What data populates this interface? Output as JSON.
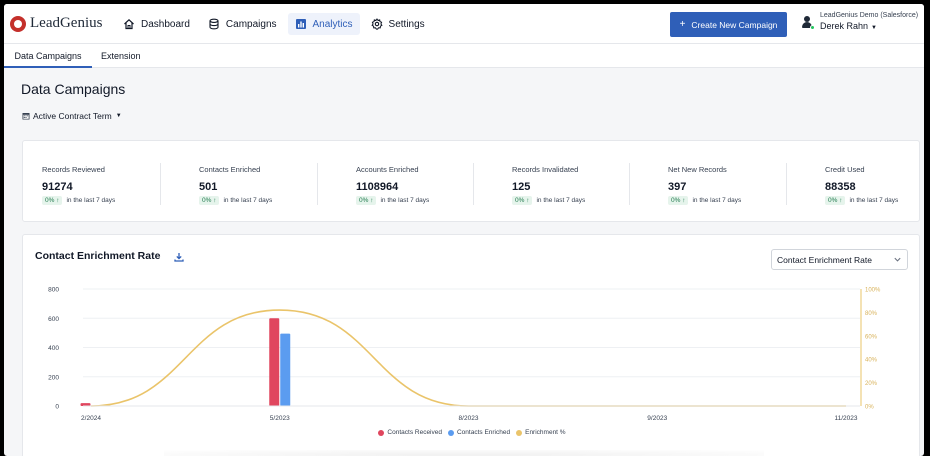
{
  "app": {
    "logo_text": "LeadGenius"
  },
  "nav": {
    "items": [
      {
        "label": "Dashboard",
        "icon": "home-icon",
        "active": false
      },
      {
        "label": "Campaigns",
        "icon": "database-icon",
        "active": false
      },
      {
        "label": "Analytics",
        "icon": "bar-chart-icon",
        "active": true
      },
      {
        "label": "Settings",
        "icon": "gear-icon",
        "active": false
      }
    ]
  },
  "header": {
    "create_button": "Create New Campaign",
    "user_org": "LeadGenius Demo (Salesforce)",
    "user_name": "Derek Rahn"
  },
  "subtabs": [
    {
      "label": "Data Campaigns",
      "active": true
    },
    {
      "label": "Extension",
      "active": false
    }
  ],
  "page": {
    "title": "Data Campaigns",
    "term_selector": "Active Contract Term"
  },
  "stats": [
    {
      "label": "Records Reviewed",
      "value": "91274",
      "change": "0%",
      "change_text": "in the last 7 days"
    },
    {
      "label": "Contacts Enriched",
      "value": "501",
      "change": "0%",
      "change_text": "in the last 7 days"
    },
    {
      "label": "Accounts Enriched",
      "value": "1108964",
      "change": "0%",
      "change_text": "in the last 7 days"
    },
    {
      "label": "Records Invalidated",
      "value": "125",
      "change": "0%",
      "change_text": "in the last 7 days"
    },
    {
      "label": "Net New Records",
      "value": "397",
      "change": "0%",
      "change_text": "in the last 7 days"
    },
    {
      "label": "Credit Used",
      "value": "88358",
      "change": "0%",
      "change_text": "in the last 7 days"
    }
  ],
  "chart_section": {
    "title": "Contact Enrichment Rate",
    "select_value": "Contact Enrichment Rate"
  },
  "chart_data": {
    "type": "bar",
    "categories": [
      "2/2024",
      "5/2023",
      "8/2023",
      "9/2023",
      "11/2023"
    ],
    "series": [
      {
        "name": "Contacts Received",
        "type": "bar",
        "color": "#e0465e",
        "values": [
          20,
          600,
          0,
          0,
          0
        ]
      },
      {
        "name": "Contacts Enriched",
        "type": "bar",
        "color": "#5b9cf0",
        "values": [
          0,
          495,
          0,
          0,
          0
        ]
      },
      {
        "name": "Enrichment %",
        "type": "line",
        "color": "#eac46a",
        "axis": "right",
        "values": [
          0,
          82,
          0,
          0,
          0
        ]
      }
    ],
    "y_left": {
      "min": 0,
      "max": 800,
      "ticks": [
        "0",
        "200",
        "400",
        "600",
        "800"
      ]
    },
    "y_right": {
      "min": 0,
      "max": 100,
      "ticks": [
        "0%",
        "20%",
        "40%",
        "60%",
        "80%",
        "100%"
      ]
    },
    "legend_position": "bottom",
    "grid": true
  },
  "colors": {
    "accent": "#2f5fb8",
    "positive_bg": "#e6f4ec",
    "positive_text": "#1f7a4d"
  }
}
